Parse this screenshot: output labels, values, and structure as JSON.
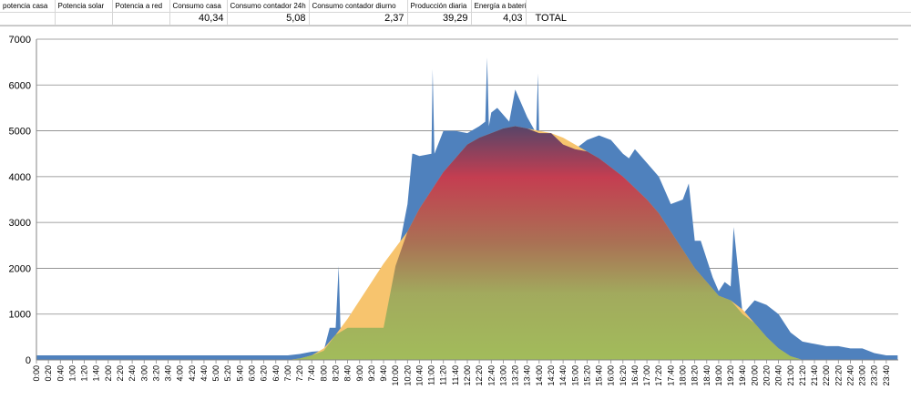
{
  "sheet": {
    "headers": [
      "potencia casa",
      "Potencia solar",
      "Potencia a red",
      "Consumo casa",
      "Consumo contador 24h",
      "Consumo contador diurno",
      "Producción diaria",
      "Energía a baterías",
      ""
    ],
    "values": [
      "",
      "",
      "",
      "40,34",
      "5,08",
      "2,37",
      "39,29",
      "4,03",
      "TOTAL"
    ]
  },
  "chart_data": {
    "type": "area",
    "title": "",
    "xlabel": "",
    "ylabel": "",
    "ylim": [
      0,
      7000
    ],
    "yticks": [
      0,
      1000,
      2000,
      3000,
      4000,
      5000,
      6000,
      7000
    ],
    "grid": true,
    "legend": "none",
    "x_ticks": [
      "0:00",
      "0:20",
      "0:40",
      "1:00",
      "1:20",
      "1:40",
      "2:00",
      "2:20",
      "2:40",
      "3:00",
      "3:20",
      "3:40",
      "4:00",
      "4:20",
      "4:40",
      "5:00",
      "5:20",
      "5:40",
      "6:00",
      "6:20",
      "6:40",
      "7:00",
      "7:20",
      "7:40",
      "8:00",
      "8:20",
      "8:40",
      "9:00",
      "9:20",
      "9:40",
      "10:00",
      "10:20",
      "10:40",
      "11:00",
      "11:20",
      "11:40",
      "12:00",
      "12:20",
      "12:40",
      "13:00",
      "13:20",
      "13:40",
      "14:00",
      "14:20",
      "14:40",
      "15:00",
      "15:20",
      "15:40",
      "16:00",
      "16:20",
      "16:40",
      "17:00",
      "17:20",
      "17:40",
      "18:00",
      "18:20",
      "18:40",
      "19:00",
      "19:20",
      "19:40",
      "20:00",
      "20:20",
      "20:40",
      "21:00",
      "21:20",
      "21:40",
      "22:00",
      "22:20",
      "22:40",
      "23:00",
      "23:20",
      "23:40"
    ],
    "series": [
      {
        "color": "#4f81bd",
        "x": [
          0,
          420,
          440,
          460,
          480,
          490,
          500,
          505,
          508,
          510,
          520,
          540,
          580,
          620,
          628,
          630,
          640,
          660,
          662,
          665,
          680,
          700,
          720,
          740,
          750,
          753,
          756,
          760,
          770,
          790,
          800,
          820,
          835,
          838,
          840,
          850,
          860,
          870,
          880,
          900,
          920,
          940,
          960,
          980,
          990,
          1000,
          1020,
          1040,
          1060,
          1080,
          1090,
          1100,
          1110,
          1120,
          1130,
          1140,
          1150,
          1160,
          1165,
          1180,
          1200,
          1220,
          1240,
          1260,
          1280,
          1300,
          1320,
          1340,
          1360,
          1380,
          1400,
          1420,
          1439
        ],
        "y": [
          100,
          100,
          130,
          180,
          200,
          700,
          700,
          2050,
          700,
          700,
          700,
          700,
          700,
          3400,
          4500,
          4500,
          4450,
          4500,
          6350,
          4500,
          5000,
          5000,
          4950,
          5100,
          5200,
          6600,
          5100,
          5400,
          5500,
          5200,
          5900,
          5300,
          4950,
          6250,
          4950,
          4900,
          4950,
          4800,
          4700,
          4600,
          4800,
          4900,
          4800,
          4500,
          4400,
          4600,
          4300,
          4000,
          3400,
          3500,
          3850,
          2600,
          2600,
          2200,
          1800,
          1500,
          1700,
          1600,
          2900,
          1000,
          1300,
          1200,
          1000,
          600,
          400,
          350,
          300,
          300,
          250,
          250,
          150,
          100,
          100
        ]
      },
      {
        "color": "#f7c46e",
        "x": [
          0,
          420,
          440,
          460,
          480,
          500,
          520,
          540,
          560,
          580,
          600,
          620,
          640,
          660,
          680,
          700,
          720,
          740,
          760,
          780,
          800,
          820,
          840,
          860,
          880,
          900,
          920,
          940,
          960,
          980,
          1000,
          1020,
          1040,
          1060,
          1080,
          1100,
          1120,
          1140,
          1160,
          1180,
          1200,
          1220,
          1240,
          1260,
          1280,
          1439
        ],
        "y": [
          0,
          0,
          30,
          100,
          250,
          550,
          900,
          1300,
          1700,
          2100,
          2450,
          2800,
          3300,
          3700,
          4100,
          4400,
          4700,
          4850,
          4950,
          5050,
          5100,
          5050,
          5000,
          4950,
          4850,
          4700,
          4550,
          4400,
          4200,
          4000,
          3750,
          3500,
          3200,
          2800,
          2400,
          2000,
          1700,
          1400,
          1300,
          1100,
          800,
          500,
          250,
          80,
          0,
          0
        ]
      }
    ]
  }
}
